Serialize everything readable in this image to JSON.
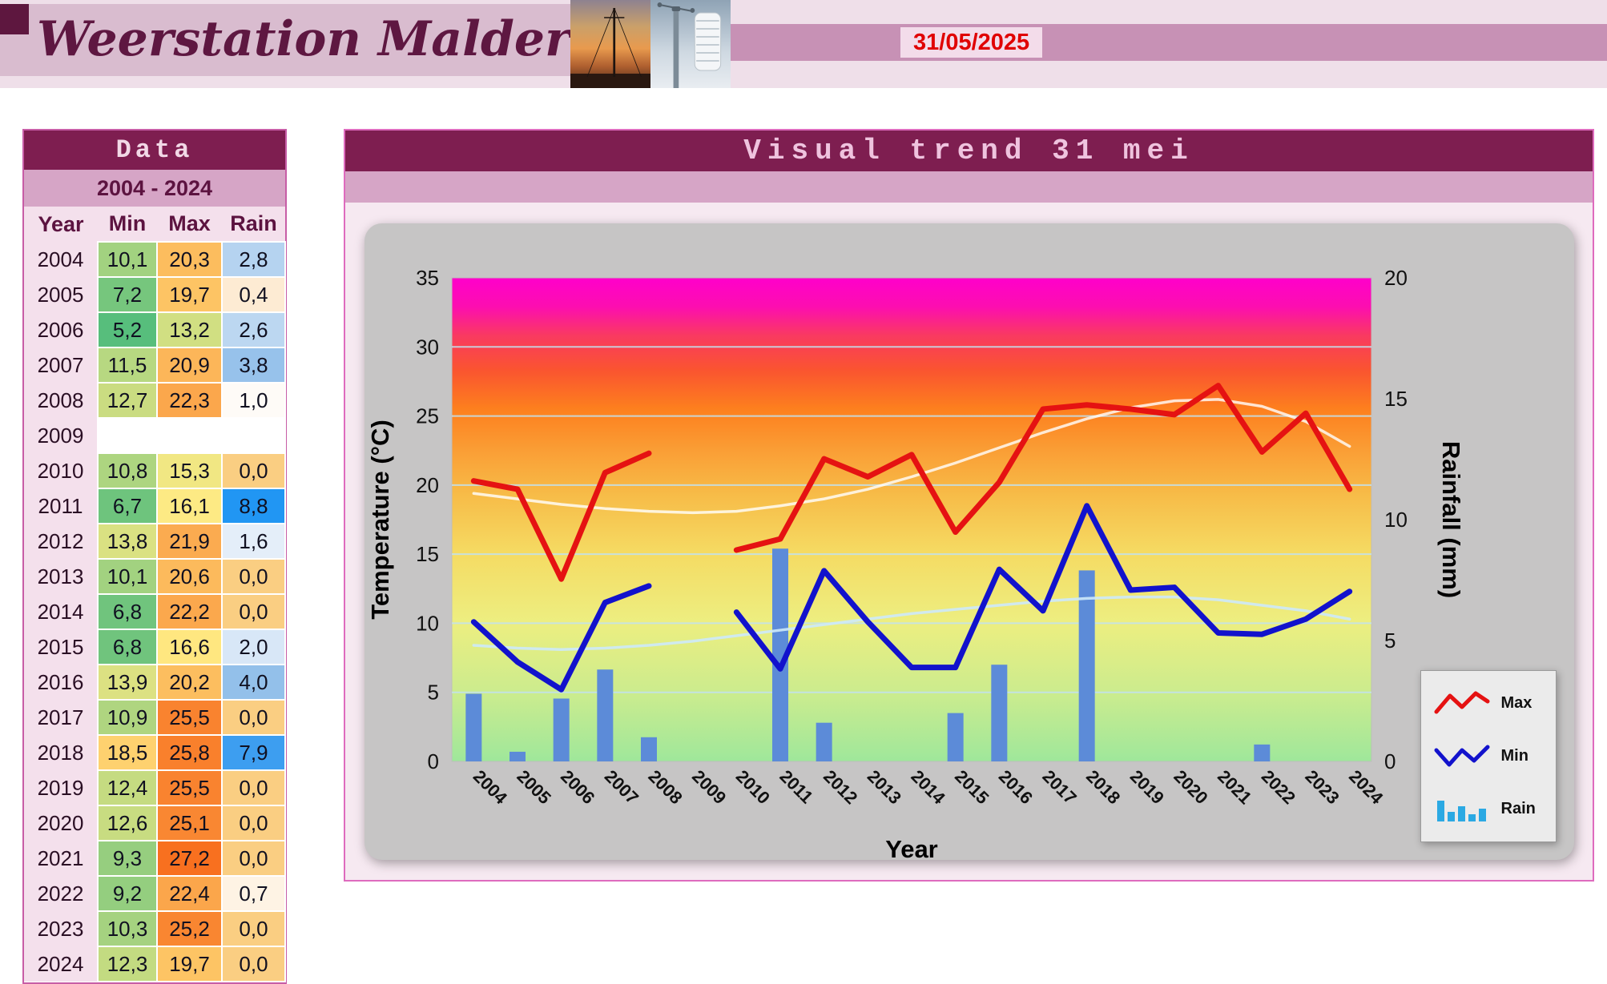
{
  "header": {
    "site_title": "Weerstation Malderen",
    "date": "31/05/2025",
    "photos": [
      {
        "name": "sunset-mast-photo"
      },
      {
        "name": "weather-station-photo"
      }
    ]
  },
  "data_panel": {
    "title": "Data",
    "range_label": "2004 - 2024",
    "columns": [
      "Year",
      "Min",
      "Max",
      "Rain"
    ],
    "rows": [
      {
        "year": "2004",
        "min": "10,1",
        "max": "20,3",
        "rain": "2,8",
        "min_color": "#A2D280",
        "max_color": "#FCBD5E",
        "rain_color": "#B5D3F0"
      },
      {
        "year": "2005",
        "min": "7,2",
        "max": "19,7",
        "rain": "0,4",
        "min_color": "#76C67D",
        "max_color": "#FDC464",
        "rain_color": "#FDEBD3"
      },
      {
        "year": "2006",
        "min": "5,2",
        "max": "13,2",
        "rain": "2,6",
        "min_color": "#57BE7C",
        "max_color": "#D1DF82",
        "rain_color": "#BCD7F1"
      },
      {
        "year": "2007",
        "min": "11,5",
        "max": "20,9",
        "rain": "3,8",
        "min_color": "#B7D881",
        "max_color": "#FCB659",
        "rain_color": "#97C2EB"
      },
      {
        "year": "2008",
        "min": "12,7",
        "max": "22,3",
        "rain": "1,0",
        "min_color": "#CADC81",
        "max_color": "#FBA74C",
        "rain_color": "#FEFBF7"
      },
      {
        "year": "2009",
        "min": "",
        "max": "",
        "rain": "",
        "min_color": "#FFFFFF",
        "max_color": "#FFFFFF",
        "rain_color": "#FFFFFF"
      },
      {
        "year": "2010",
        "min": "10,8",
        "max": "15,3",
        "rain": "0,0",
        "min_color": "#ADD580",
        "max_color": "#F1E783",
        "rain_color": "#FACE82"
      },
      {
        "year": "2011",
        "min": "6,7",
        "max": "16,1",
        "rain": "8,8",
        "min_color": "#6EC47D",
        "max_color": "#FDEA84",
        "rain_color": "#2196F3"
      },
      {
        "year": "2012",
        "min": "13,8",
        "max": "21,9",
        "rain": "1,6",
        "min_color": "#DAE182",
        "max_color": "#FBAB50",
        "rain_color": "#E4EEF9"
      },
      {
        "year": "2013",
        "min": "10,1",
        "max": "20,6",
        "rain": "0,0",
        "min_color": "#A2D280",
        "max_color": "#FCBA5C",
        "rain_color": "#FACE82"
      },
      {
        "year": "2014",
        "min": "6,8",
        "max": "22,2",
        "rain": "0,0",
        "min_color": "#70C47D",
        "max_color": "#FBA84D",
        "rain_color": "#FACE82"
      },
      {
        "year": "2015",
        "min": "6,8",
        "max": "16,6",
        "rain": "2,0",
        "min_color": "#70C47D",
        "max_color": "#FFE780",
        "rain_color": "#D8E7F7"
      },
      {
        "year": "2016",
        "min": "13,9",
        "max": "20,2",
        "rain": "4,0",
        "min_color": "#DCE182",
        "max_color": "#FCBE5F",
        "rain_color": "#93C0EA"
      },
      {
        "year": "2017",
        "min": "10,9",
        "max": "25,5",
        "rain": "0,0",
        "min_color": "#AFD580",
        "max_color": "#F9832F",
        "rain_color": "#FACE82"
      },
      {
        "year": "2018",
        "min": "18,5",
        "max": "25,8",
        "rain": "7,9",
        "min_color": "#FED16F",
        "max_color": "#F9802C",
        "rain_color": "#3D9EF0"
      },
      {
        "year": "2019",
        "min": "12,4",
        "max": "25,5",
        "rain": "0,0",
        "min_color": "#C5DB81",
        "max_color": "#F9832F",
        "rain_color": "#FACE82"
      },
      {
        "year": "2020",
        "min": "12,6",
        "max": "25,1",
        "rain": "0,0",
        "min_color": "#C8DC81",
        "max_color": "#F98732",
        "rain_color": "#FACE82"
      },
      {
        "year": "2021",
        "min": "9,3",
        "max": "27,2",
        "rain": "0,0",
        "min_color": "#96CE7F",
        "max_color": "#F8701F",
        "rain_color": "#FACE82"
      },
      {
        "year": "2022",
        "min": "9,2",
        "max": "22,4",
        "rain": "0,7",
        "min_color": "#94CE7F",
        "max_color": "#FBA64B",
        "rain_color": "#FEF3E4"
      },
      {
        "year": "2023",
        "min": "10,3",
        "max": "25,2",
        "rain": "0,0",
        "min_color": "#A5D280",
        "max_color": "#F98631",
        "rain_color": "#FACE82"
      },
      {
        "year": "2024",
        "min": "12,3",
        "max": "19,7",
        "rain": "0,0",
        "min_color": "#C3DB81",
        "max_color": "#FDC464",
        "rain_color": "#FACE82"
      }
    ]
  },
  "chart_panel": {
    "title": "Visual trend 31 mei",
    "legend": [
      {
        "label": "Max",
        "color": "#E51212",
        "icon": "max-line-icon"
      },
      {
        "label": "Min",
        "color": "#1212CC",
        "icon": "min-line-icon"
      },
      {
        "label": "Rain",
        "color": "#2BA9E3",
        "icon": "rain-bars-icon"
      }
    ]
  },
  "chart_data": {
    "type": "line+bar combo",
    "title": "Visual trend 31 mei",
    "x": [
      "2004",
      "2005",
      "2006",
      "2007",
      "2008",
      "2009",
      "2010",
      "2011",
      "2012",
      "2013",
      "2014",
      "2015",
      "2016",
      "2017",
      "2018",
      "2019",
      "2020",
      "2021",
      "2022",
      "2023",
      "2024"
    ],
    "series": [
      {
        "name": "Max",
        "type": "line",
        "axis": "left",
        "color": "#E51212",
        "values": [
          20.3,
          19.7,
          13.2,
          20.9,
          22.3,
          null,
          15.3,
          16.1,
          21.9,
          20.6,
          22.2,
          16.6,
          20.2,
          25.5,
          25.8,
          25.5,
          25.1,
          27.2,
          22.4,
          25.2,
          19.7
        ]
      },
      {
        "name": "Min",
        "type": "line",
        "axis": "left",
        "color": "#1212CC",
        "values": [
          10.1,
          7.2,
          5.2,
          11.5,
          12.7,
          null,
          10.8,
          6.7,
          13.8,
          10.1,
          6.8,
          6.8,
          13.9,
          10.9,
          18.5,
          12.4,
          12.6,
          9.3,
          9.2,
          10.3,
          12.3
        ]
      },
      {
        "name": "Rain",
        "type": "bar",
        "axis": "right",
        "color": "#5C8BD8",
        "values": [
          2.8,
          0.4,
          2.6,
          3.8,
          1.0,
          null,
          0,
          8.8,
          1.6,
          0,
          0,
          2.0,
          4.0,
          0,
          7.9,
          0,
          0,
          0,
          0.7,
          0,
          0
        ]
      }
    ],
    "trend_lines": [
      {
        "name": "Max trend",
        "color": "rgba(255,255,255,0.8)",
        "values": [
          19.4,
          19.0,
          18.6,
          18.3,
          18.1,
          18.0,
          18.1,
          18.5,
          19.0,
          19.7,
          20.6,
          21.6,
          22.7,
          23.8,
          24.8,
          25.6,
          26.1,
          26.2,
          25.7,
          24.6,
          22.8
        ]
      },
      {
        "name": "Min trend",
        "color": "rgba(205,233,250,0.9)",
        "values": [
          8.4,
          8.2,
          8.1,
          8.2,
          8.4,
          8.7,
          9.1,
          9.5,
          9.9,
          10.3,
          10.7,
          11.0,
          11.3,
          11.6,
          11.8,
          11.9,
          11.9,
          11.7,
          11.3,
          10.9,
          10.3
        ]
      }
    ],
    "left_axis": {
      "label": "Temperature (°C)",
      "min": 0,
      "max": 35,
      "ticks": [
        0,
        5,
        10,
        15,
        20,
        25,
        30,
        35
      ]
    },
    "right_axis": {
      "label": "Rainfall (mm)",
      "min": 0,
      "max": 20,
      "ticks": [
        0,
        5,
        10,
        15,
        20
      ]
    },
    "x_axis": {
      "label": "Year"
    },
    "grid": true,
    "legend_position": "bottom-right",
    "background_gradient": [
      {
        "offset": 0,
        "color": "#FF00CB"
      },
      {
        "offset": 0.06,
        "color": "#FC0EB0"
      },
      {
        "offset": 0.12,
        "color": "#F93A60"
      },
      {
        "offset": 0.19,
        "color": "#FA5430"
      },
      {
        "offset": 0.27,
        "color": "#FD7F1E"
      },
      {
        "offset": 0.36,
        "color": "#FA9F36"
      },
      {
        "offset": 0.45,
        "color": "#F7BC48"
      },
      {
        "offset": 0.57,
        "color": "#F5DB63"
      },
      {
        "offset": 0.71,
        "color": "#EDEE80"
      },
      {
        "offset": 0.86,
        "color": "#CBEC8E"
      },
      {
        "offset": 1,
        "color": "#9FE79B"
      }
    ]
  }
}
